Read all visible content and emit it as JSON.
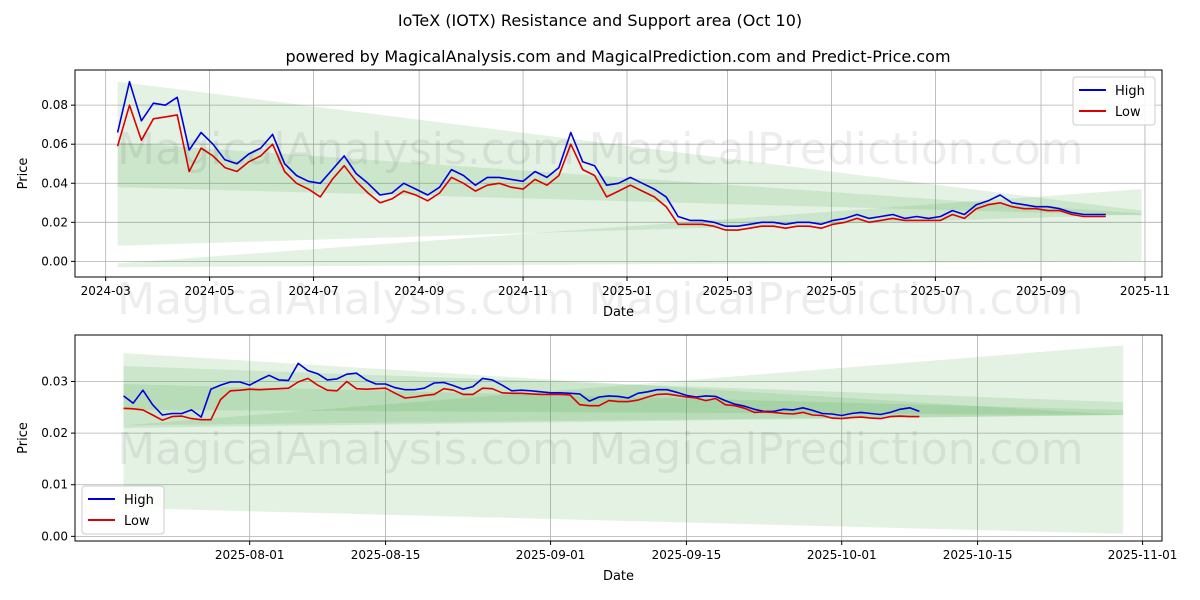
{
  "title": "IoTeX (IOTX) Resistance and Support area (Oct 10)",
  "subtitle": "powered by MagicalAnalysis.com and MagicalPrediction.com and Predict-Price.com",
  "watermarks": [
    "MagicalAnalysis.com",
    "MagicalPrediction.com"
  ],
  "colors": {
    "high": "#0000dd",
    "low": "#dd0000",
    "band": "#2e9e2e",
    "grid": "#b0b0b0"
  },
  "chart_data": [
    {
      "type": "line",
      "name": "full-history",
      "xlabel": "Date",
      "ylabel": "Price",
      "xlim": [
        "2024-02-12",
        "2025-11-11"
      ],
      "ylim": [
        -0.008,
        0.098
      ],
      "xticks": [
        "2024-03-01",
        "2024-05-01",
        "2024-07-01",
        "2024-09-01",
        "2024-11-01",
        "2025-01-01",
        "2025-03-01",
        "2025-05-01",
        "2025-07-01",
        "2025-09-01",
        "2025-11-01"
      ],
      "xtick_labels": [
        "2024-03",
        "2024-05",
        "2024-07",
        "2024-09",
        "2024-11",
        "2025-01",
        "2025-03",
        "2025-05",
        "2025-07",
        "2025-09",
        "2025-11"
      ],
      "yticks": [
        0.0,
        0.02,
        0.04,
        0.06,
        0.08
      ],
      "ytick_labels": [
        "0.00",
        "0.02",
        "0.04",
        "0.06",
        "0.08"
      ],
      "legend": {
        "position": "top-right",
        "entries": [
          "High",
          "Low"
        ]
      },
      "bands": [
        {
          "x": [
            "2024-03-08",
            "2025-10-30"
          ],
          "top": [
            0.092,
            0.026
          ],
          "bottom": [
            0.008,
            0.024
          ]
        },
        {
          "x": [
            "2024-03-08",
            "2025-10-30"
          ],
          "top": [
            0.061,
            0.0245
          ],
          "bottom": [
            0.038,
            0.0235
          ]
        },
        {
          "x": [
            "2024-03-08",
            "2025-10-30"
          ],
          "top": [
            -0.001,
            0.037
          ],
          "bottom": [
            -0.003,
            0.0
          ]
        }
      ],
      "series": [
        {
          "name": "High",
          "x": [
            "2024-03-08",
            "2024-03-15",
            "2024-03-22",
            "2024-03-29",
            "2024-04-05",
            "2024-04-12",
            "2024-04-19",
            "2024-04-26",
            "2024-05-03",
            "2024-05-10",
            "2024-05-17",
            "2024-05-24",
            "2024-05-31",
            "2024-06-07",
            "2024-06-14",
            "2024-06-21",
            "2024-06-28",
            "2024-07-05",
            "2024-07-12",
            "2024-07-19",
            "2024-07-26",
            "2024-08-02",
            "2024-08-09",
            "2024-08-16",
            "2024-08-23",
            "2024-08-30",
            "2024-09-06",
            "2024-09-13",
            "2024-09-20",
            "2024-09-27",
            "2024-10-04",
            "2024-10-11",
            "2024-10-18",
            "2024-10-25",
            "2024-11-01",
            "2024-11-08",
            "2024-11-15",
            "2024-11-22",
            "2024-11-29",
            "2024-12-06",
            "2024-12-13",
            "2024-12-20",
            "2024-12-27",
            "2025-01-03",
            "2025-01-10",
            "2025-01-17",
            "2025-01-24",
            "2025-01-31",
            "2025-02-07",
            "2025-02-14",
            "2025-02-21",
            "2025-02-28",
            "2025-03-07",
            "2025-03-14",
            "2025-03-21",
            "2025-03-28",
            "2025-04-04",
            "2025-04-11",
            "2025-04-18",
            "2025-04-25",
            "2025-05-02",
            "2025-05-09",
            "2025-05-16",
            "2025-05-23",
            "2025-05-30",
            "2025-06-06",
            "2025-06-13",
            "2025-06-20",
            "2025-06-27",
            "2025-07-04",
            "2025-07-11",
            "2025-07-18",
            "2025-07-25",
            "2025-08-01",
            "2025-08-08",
            "2025-08-15",
            "2025-08-22",
            "2025-08-29",
            "2025-09-05",
            "2025-09-12",
            "2025-09-19",
            "2025-09-26",
            "2025-10-03",
            "2025-10-09"
          ],
          "values": [
            0.066,
            0.092,
            0.072,
            0.081,
            0.08,
            0.084,
            0.057,
            0.066,
            0.06,
            0.052,
            0.05,
            0.055,
            0.058,
            0.065,
            0.05,
            0.044,
            0.041,
            0.04,
            0.047,
            0.054,
            0.045,
            0.04,
            0.034,
            0.035,
            0.04,
            0.037,
            0.034,
            0.038,
            0.047,
            0.044,
            0.039,
            0.043,
            0.043,
            0.042,
            0.041,
            0.046,
            0.043,
            0.048,
            0.066,
            0.051,
            0.049,
            0.039,
            0.04,
            0.043,
            0.04,
            0.037,
            0.033,
            0.023,
            0.021,
            0.021,
            0.02,
            0.018,
            0.018,
            0.019,
            0.02,
            0.02,
            0.019,
            0.02,
            0.02,
            0.019,
            0.021,
            0.022,
            0.024,
            0.022,
            0.023,
            0.024,
            0.022,
            0.023,
            0.022,
            0.023,
            0.026,
            0.024,
            0.029,
            0.031,
            0.034,
            0.03,
            0.029,
            0.028,
            0.028,
            0.027,
            0.025,
            0.024,
            0.024,
            0.024
          ]
        },
        {
          "name": "Low",
          "x": [
            "2024-03-08",
            "2024-03-15",
            "2024-03-22",
            "2024-03-29",
            "2024-04-05",
            "2024-04-12",
            "2024-04-19",
            "2024-04-26",
            "2024-05-03",
            "2024-05-10",
            "2024-05-17",
            "2024-05-24",
            "2024-05-31",
            "2024-06-07",
            "2024-06-14",
            "2024-06-21",
            "2024-06-28",
            "2024-07-05",
            "2024-07-12",
            "2024-07-19",
            "2024-07-26",
            "2024-08-02",
            "2024-08-09",
            "2024-08-16",
            "2024-08-23",
            "2024-08-30",
            "2024-09-06",
            "2024-09-13",
            "2024-09-20",
            "2024-09-27",
            "2024-10-04",
            "2024-10-11",
            "2024-10-18",
            "2024-10-25",
            "2024-11-01",
            "2024-11-08",
            "2024-11-15",
            "2024-11-22",
            "2024-11-29",
            "2024-12-06",
            "2024-12-13",
            "2024-12-20",
            "2024-12-27",
            "2025-01-03",
            "2025-01-10",
            "2025-01-17",
            "2025-01-24",
            "2025-01-31",
            "2025-02-07",
            "2025-02-14",
            "2025-02-21",
            "2025-02-28",
            "2025-03-07",
            "2025-03-14",
            "2025-03-21",
            "2025-03-28",
            "2025-04-04",
            "2025-04-11",
            "2025-04-18",
            "2025-04-25",
            "2025-05-02",
            "2025-05-09",
            "2025-05-16",
            "2025-05-23",
            "2025-05-30",
            "2025-06-06",
            "2025-06-13",
            "2025-06-20",
            "2025-06-27",
            "2025-07-04",
            "2025-07-11",
            "2025-07-18",
            "2025-07-25",
            "2025-08-01",
            "2025-08-08",
            "2025-08-15",
            "2025-08-22",
            "2025-08-29",
            "2025-09-05",
            "2025-09-12",
            "2025-09-19",
            "2025-09-26",
            "2025-10-03",
            "2025-10-09"
          ],
          "values": [
            0.059,
            0.08,
            0.062,
            0.073,
            0.074,
            0.075,
            0.046,
            0.058,
            0.054,
            0.048,
            0.046,
            0.051,
            0.054,
            0.06,
            0.046,
            0.04,
            0.037,
            0.033,
            0.042,
            0.049,
            0.041,
            0.035,
            0.03,
            0.032,
            0.036,
            0.034,
            0.031,
            0.035,
            0.043,
            0.04,
            0.036,
            0.039,
            0.04,
            0.038,
            0.037,
            0.042,
            0.039,
            0.044,
            0.06,
            0.047,
            0.044,
            0.033,
            0.036,
            0.039,
            0.036,
            0.033,
            0.028,
            0.019,
            0.019,
            0.019,
            0.018,
            0.016,
            0.016,
            0.017,
            0.018,
            0.018,
            0.017,
            0.018,
            0.018,
            0.017,
            0.019,
            0.02,
            0.022,
            0.02,
            0.021,
            0.022,
            0.021,
            0.021,
            0.021,
            0.021,
            0.024,
            0.022,
            0.027,
            0.029,
            0.03,
            0.028,
            0.027,
            0.027,
            0.026,
            0.026,
            0.024,
            0.023,
            0.023,
            0.023
          ]
        }
      ]
    },
    {
      "type": "line",
      "name": "recent",
      "xlabel": "Date",
      "ylabel": "Price",
      "xlim": [
        "2025-07-14",
        "2025-11-03"
      ],
      "ylim": [
        -0.0009,
        0.039
      ],
      "xticks": [
        "2025-08-01",
        "2025-08-15",
        "2025-09-01",
        "2025-09-15",
        "2025-10-01",
        "2025-10-15",
        "2025-11-01"
      ],
      "xtick_labels": [
        "2025-08-01",
        "2025-08-15",
        "2025-09-01",
        "2025-09-15",
        "2025-10-01",
        "2025-10-15",
        "2025-11-01"
      ],
      "yticks": [
        0.0,
        0.01,
        0.02,
        0.03
      ],
      "ytick_labels": [
        "0.00",
        "0.01",
        "0.02",
        "0.03"
      ],
      "legend": {
        "position": "bottom-left",
        "entries": [
          "High",
          "Low"
        ]
      },
      "bands": [
        {
          "x": [
            "2025-07-19",
            "2025-10-30"
          ],
          "top": [
            0.0355,
            0.0235
          ],
          "bottom": [
            0.0055,
            0.0005
          ]
        },
        {
          "x": [
            "2025-07-19",
            "2025-10-30"
          ],
          "top": [
            0.033,
            0.026
          ],
          "bottom": [
            0.0215,
            0.0235
          ]
        },
        {
          "x": [
            "2025-07-19",
            "2025-10-30"
          ],
          "top": [
            0.0295,
            0.0245
          ],
          "bottom": [
            0.0245,
            0.0235
          ]
        },
        {
          "x": [
            "2025-07-19",
            "2025-10-30"
          ],
          "top": [
            0.0215,
            0.037
          ],
          "bottom": [
            0.021,
            0.0235
          ]
        }
      ],
      "series": [
        {
          "name": "High",
          "x": [
            "2025-07-19",
            "2025-07-20",
            "2025-07-21",
            "2025-07-22",
            "2025-07-23",
            "2025-07-24",
            "2025-07-25",
            "2025-07-26",
            "2025-07-27",
            "2025-07-28",
            "2025-07-29",
            "2025-07-30",
            "2025-07-31",
            "2025-08-01",
            "2025-08-02",
            "2025-08-03",
            "2025-08-04",
            "2025-08-05",
            "2025-08-06",
            "2025-08-07",
            "2025-08-08",
            "2025-08-09",
            "2025-08-10",
            "2025-08-11",
            "2025-08-12",
            "2025-08-13",
            "2025-08-14",
            "2025-08-15",
            "2025-08-16",
            "2025-08-17",
            "2025-08-18",
            "2025-08-19",
            "2025-08-20",
            "2025-08-21",
            "2025-08-22",
            "2025-08-23",
            "2025-08-24",
            "2025-08-25",
            "2025-08-26",
            "2025-08-27",
            "2025-08-28",
            "2025-08-29",
            "2025-08-30",
            "2025-08-31",
            "2025-09-01",
            "2025-09-02",
            "2025-09-03",
            "2025-09-04",
            "2025-09-05",
            "2025-09-06",
            "2025-09-07",
            "2025-09-08",
            "2025-09-09",
            "2025-09-10",
            "2025-09-11",
            "2025-09-12",
            "2025-09-13",
            "2025-09-14",
            "2025-09-15",
            "2025-09-16",
            "2025-09-17",
            "2025-09-18",
            "2025-09-19",
            "2025-09-20",
            "2025-09-21",
            "2025-09-22",
            "2025-09-23",
            "2025-09-24",
            "2025-09-25",
            "2025-09-26",
            "2025-09-27",
            "2025-09-28",
            "2025-09-29",
            "2025-09-30",
            "2025-10-01",
            "2025-10-02",
            "2025-10-03",
            "2025-10-04",
            "2025-10-05",
            "2025-10-06",
            "2025-10-07",
            "2025-10-08",
            "2025-10-09"
          ],
          "values": [
            0.0272,
            0.0258,
            0.0283,
            0.0255,
            0.0235,
            0.0238,
            0.0238,
            0.0245,
            0.0231,
            0.0285,
            0.0293,
            0.0299,
            0.0299,
            0.0293,
            0.0303,
            0.0312,
            0.0303,
            0.0302,
            0.0335,
            0.0321,
            0.0315,
            0.0303,
            0.0305,
            0.0314,
            0.0316,
            0.0303,
            0.0295,
            0.0295,
            0.0288,
            0.0284,
            0.0284,
            0.0287,
            0.0297,
            0.0298,
            0.0292,
            0.0285,
            0.029,
            0.0306,
            0.0303,
            0.0293,
            0.0282,
            0.0283,
            0.0282,
            0.028,
            0.0278,
            0.0278,
            0.0277,
            0.0276,
            0.0262,
            0.027,
            0.0272,
            0.0271,
            0.0268,
            0.0277,
            0.028,
            0.0284,
            0.0284,
            0.0279,
            0.0273,
            0.027,
            0.0272,
            0.0271,
            0.0263,
            0.0256,
            0.0252,
            0.0246,
            0.0242,
            0.0242,
            0.0246,
            0.0245,
            0.0249,
            0.0244,
            0.0238,
            0.0237,
            0.0234,
            0.0238,
            0.024,
            0.0238,
            0.0236,
            0.024,
            0.0246,
            0.0249,
            0.0242
          ]
        },
        {
          "name": "Low",
          "x": [
            "2025-07-19",
            "2025-07-20",
            "2025-07-21",
            "2025-07-22",
            "2025-07-23",
            "2025-07-24",
            "2025-07-25",
            "2025-07-26",
            "2025-07-27",
            "2025-07-28",
            "2025-07-29",
            "2025-07-30",
            "2025-07-31",
            "2025-08-01",
            "2025-08-02",
            "2025-08-03",
            "2025-08-04",
            "2025-08-05",
            "2025-08-06",
            "2025-08-07",
            "2025-08-08",
            "2025-08-09",
            "2025-08-10",
            "2025-08-11",
            "2025-08-12",
            "2025-08-13",
            "2025-08-14",
            "2025-08-15",
            "2025-08-16",
            "2025-08-17",
            "2025-08-18",
            "2025-08-19",
            "2025-08-20",
            "2025-08-21",
            "2025-08-22",
            "2025-08-23",
            "2025-08-24",
            "2025-08-25",
            "2025-08-26",
            "2025-08-27",
            "2025-08-28",
            "2025-08-29",
            "2025-08-30",
            "2025-08-31",
            "2025-09-01",
            "2025-09-02",
            "2025-09-03",
            "2025-09-04",
            "2025-09-05",
            "2025-09-06",
            "2025-09-07",
            "2025-09-08",
            "2025-09-09",
            "2025-09-10",
            "2025-09-11",
            "2025-09-12",
            "2025-09-13",
            "2025-09-14",
            "2025-09-15",
            "2025-09-16",
            "2025-09-17",
            "2025-09-18",
            "2025-09-19",
            "2025-09-20",
            "2025-09-21",
            "2025-09-22",
            "2025-09-23",
            "2025-09-24",
            "2025-09-25",
            "2025-09-26",
            "2025-09-27",
            "2025-09-28",
            "2025-09-29",
            "2025-09-30",
            "2025-10-01",
            "2025-10-02",
            "2025-10-03",
            "2025-10-04",
            "2025-10-05",
            "2025-10-06",
            "2025-10-07",
            "2025-10-08",
            "2025-10-09"
          ],
          "values": [
            0.0248,
            0.0247,
            0.0245,
            0.0235,
            0.0225,
            0.0232,
            0.0233,
            0.0228,
            0.0226,
            0.0226,
            0.0265,
            0.0282,
            0.0283,
            0.0285,
            0.0284,
            0.0285,
            0.0286,
            0.0287,
            0.0299,
            0.0306,
            0.0293,
            0.0283,
            0.0282,
            0.03,
            0.0286,
            0.0285,
            0.0286,
            0.0287,
            0.0277,
            0.0268,
            0.027,
            0.0273,
            0.0275,
            0.0286,
            0.0283,
            0.0275,
            0.0275,
            0.0287,
            0.0286,
            0.0278,
            0.0277,
            0.0277,
            0.0276,
            0.0275,
            0.0275,
            0.0275,
            0.0274,
            0.0255,
            0.0253,
            0.0253,
            0.0263,
            0.0261,
            0.0261,
            0.0264,
            0.027,
            0.0275,
            0.0276,
            0.0273,
            0.027,
            0.0268,
            0.0263,
            0.0267,
            0.0255,
            0.0253,
            0.0248,
            0.024,
            0.0241,
            0.024,
            0.0238,
            0.0237,
            0.024,
            0.0235,
            0.0234,
            0.0229,
            0.0228,
            0.023,
            0.0231,
            0.0229,
            0.0228,
            0.0232,
            0.0233,
            0.0232,
            0.0232
          ]
        }
      ]
    }
  ]
}
